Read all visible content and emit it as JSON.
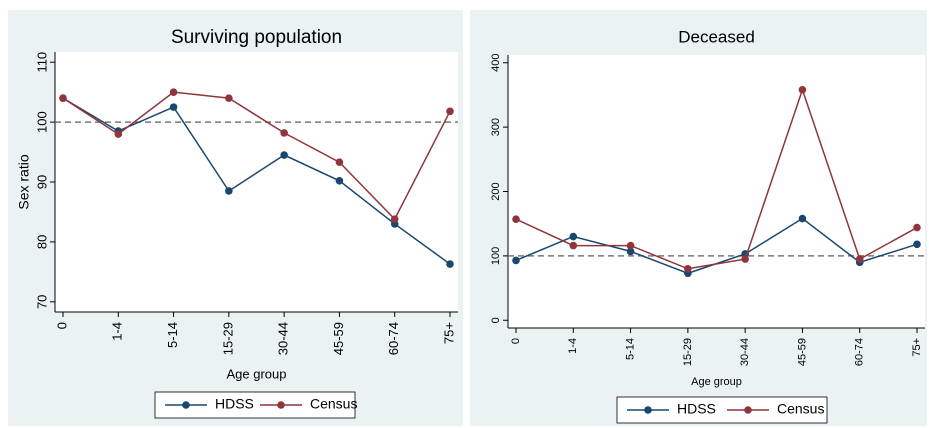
{
  "chart_data": [
    {
      "type": "line",
      "title": "Surviving population",
      "xlabel": "Age group",
      "ylabel": "Sex ratio",
      "categories": [
        "0",
        "1-4",
        "5-14",
        "15-29",
        "30-44",
        "45-59",
        "60-74",
        "75+"
      ],
      "series": [
        {
          "name": "HDSS",
          "color": "#1a476f",
          "values": [
            104,
            98.5,
            102.5,
            88.5,
            94.5,
            90.2,
            83,
            76.3
          ]
        },
        {
          "name": "Census",
          "color": "#90353b",
          "values": [
            104,
            98,
            105,
            104,
            98.2,
            93.3,
            83.8,
            101.8
          ]
        }
      ],
      "ylim": [
        68.3,
        111.7
      ],
      "yticks": [
        70,
        80,
        90,
        100,
        110
      ],
      "refline": 100
    },
    {
      "type": "line",
      "title": "Deceased",
      "xlabel": "Age group",
      "categories": [
        "0",
        "1-4",
        "5-14",
        "15-29",
        "30-44",
        "45-59",
        "60-74",
        "75+"
      ],
      "series": [
        {
          "name": "HDSS",
          "color": "#1a476f",
          "values": [
            93,
            130,
            107,
            73,
            103,
            158,
            90,
            118
          ]
        },
        {
          "name": "Census",
          "color": "#90353b",
          "values": [
            157,
            116,
            116,
            80,
            95,
            358,
            95,
            144
          ]
        }
      ],
      "ylim": [
        -12,
        412
      ],
      "yticks": [
        0,
        100,
        200,
        300,
        400
      ],
      "refline": 100
    }
  ]
}
